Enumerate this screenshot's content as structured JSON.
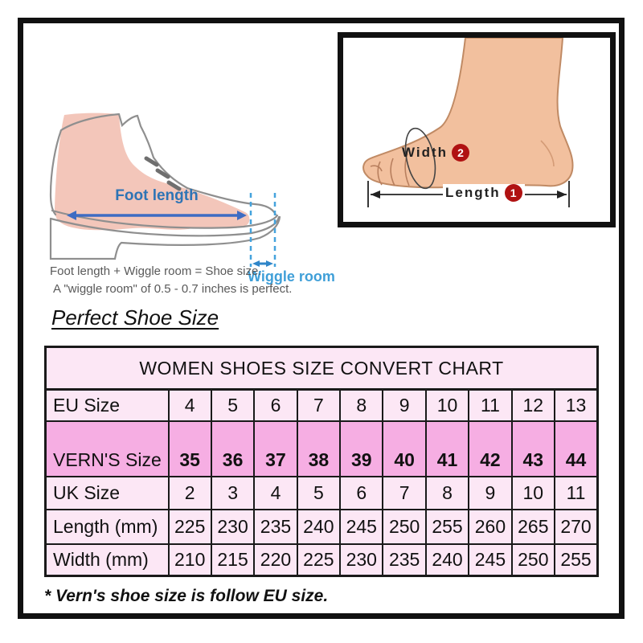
{
  "illustration_left": {
    "foot_length_label": "Foot length",
    "wiggle_room_label": "Wiggle room",
    "note_line1": "Foot length + Wiggle room = Shoe size.",
    "note_line2": "A \"wiggle room\" of 0.5 - 0.7 inches is perfect."
  },
  "illustration_right": {
    "width_label": "Width",
    "width_marker": "2",
    "length_label": "Length",
    "length_marker": "1"
  },
  "heading": "Perfect Shoe Size",
  "table": {
    "title": "WOMEN SHOES SIZE CONVERT CHART",
    "rows": [
      {
        "label": "EU Size",
        "highlight": false,
        "values": [
          "4",
          "5",
          "6",
          "7",
          "8",
          "9",
          "10",
          "11",
          "12",
          "13"
        ]
      },
      {
        "label": "VERN'S Size",
        "highlight": true,
        "values": [
          "35",
          "36",
          "37",
          "38",
          "39",
          "40",
          "41",
          "42",
          "43",
          "44"
        ]
      },
      {
        "label": "UK Size",
        "highlight": false,
        "values": [
          "2",
          "3",
          "4",
          "5",
          "6",
          "7",
          "8",
          "9",
          "10",
          "11"
        ]
      },
      {
        "label": "Length (mm)",
        "highlight": false,
        "values": [
          "225",
          "230",
          "235",
          "240",
          "245",
          "250",
          "255",
          "260",
          "265",
          "270"
        ]
      },
      {
        "label": "Width (mm)",
        "highlight": false,
        "values": [
          "210",
          "215",
          "220",
          "225",
          "230",
          "235",
          "240",
          "245",
          "250",
          "255"
        ]
      }
    ]
  },
  "footnote": "* Vern's shoe size is follow EU size.",
  "chart_data": {
    "type": "table",
    "title": "WOMEN SHOES SIZE CONVERT CHART",
    "row_labels": [
      "EU Size",
      "VERN'S Size",
      "UK Size",
      "Length (mm)",
      "Width (mm)"
    ],
    "series": [
      {
        "name": "EU Size",
        "values": [
          4,
          5,
          6,
          7,
          8,
          9,
          10,
          11,
          12,
          13
        ]
      },
      {
        "name": "VERN'S Size",
        "values": [
          35,
          36,
          37,
          38,
          39,
          40,
          41,
          42,
          43,
          44
        ]
      },
      {
        "name": "UK Size",
        "values": [
          2,
          3,
          4,
          5,
          6,
          7,
          8,
          9,
          10,
          11
        ]
      },
      {
        "name": "Length (mm)",
        "values": [
          225,
          230,
          235,
          240,
          245,
          250,
          255,
          260,
          265,
          270
        ]
      },
      {
        "name": "Width (mm)",
        "values": [
          210,
          215,
          220,
          225,
          230,
          235,
          240,
          245,
          250,
          255
        ]
      }
    ],
    "annotations": [
      "* Vern's shoe size is follow EU size."
    ]
  },
  "colors": {
    "table_row_light": "#fce7f5",
    "table_row_highlight": "#f6aee3",
    "table_border": "#1a1a1a",
    "annotation_blue_dark": "#2e74b5",
    "annotation_blue_light": "#3f9fd8",
    "arrow_blue": "#3e6cc3",
    "marker_red": "#b01212",
    "foot_skin": "#f2c09e",
    "boot_sock_pink": "#f3c6ba",
    "boot_outline_gray": "#8f8f8f",
    "note_gray": "#595959"
  }
}
